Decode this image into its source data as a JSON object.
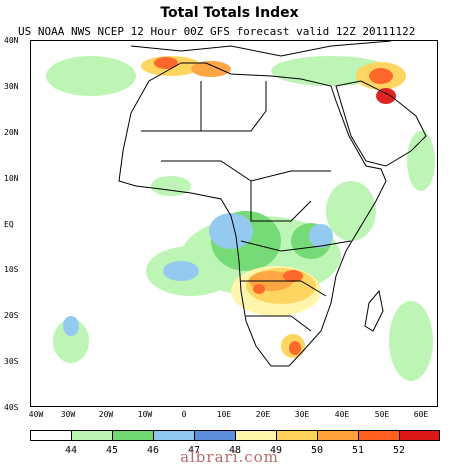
{
  "title": "Total Totals Index",
  "subtitle": "US NOAA NWS NCEP 12 Hour 00Z GFS forecast valid 12Z 20111122",
  "lat_labels": [
    "40N",
    "30N",
    "20N",
    "10N",
    "EQ",
    "10S",
    "20S",
    "30S",
    "40S"
  ],
  "lon_labels": [
    "40W",
    "30W",
    "20W",
    "10W",
    "0",
    "10E",
    "20E",
    "30E",
    "40E",
    "50E",
    "60E"
  ],
  "legend": {
    "colors": [
      "#ffffff",
      "#b9f5b0",
      "#6fd96f",
      "#8fc8ef",
      "#5b8fdc",
      "#fff5a8",
      "#ffd35a",
      "#ffa23a",
      "#ff6020",
      "#dd1818"
    ],
    "labels": [
      "44",
      "45",
      "46",
      "47",
      "48",
      "49",
      "50",
      "51",
      "52"
    ]
  },
  "watermark": "albrari.com"
}
